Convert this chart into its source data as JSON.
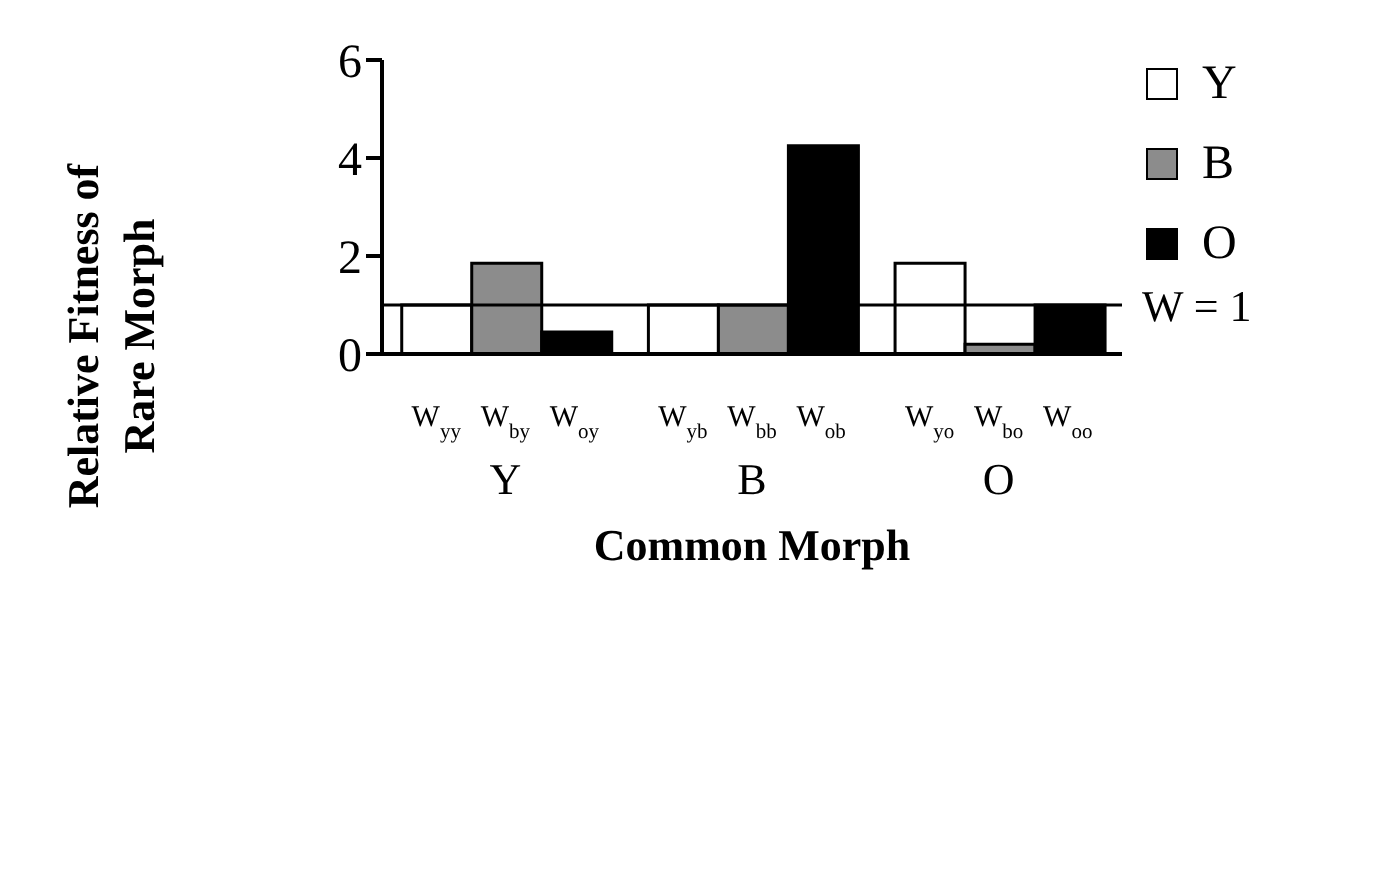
{
  "chart_data": {
    "type": "bar",
    "xlabel": "Common Morph",
    "ylabel": "Relative Fitness of Rare Morph",
    "categories": [
      "Y",
      "B",
      "O"
    ],
    "series": [
      {
        "name": "Y",
        "color": "#ffffff",
        "values": [
          1,
          1,
          1.85
        ]
      },
      {
        "name": "B",
        "color": "#8c8c8c",
        "values": [
          1.85,
          1,
          0.2
        ]
      },
      {
        "name": "O",
        "color": "#000000",
        "values": [
          0.45,
          4.25,
          1
        ]
      }
    ],
    "ylim": [
      0,
      6
    ],
    "yticks": [
      0,
      2,
      4,
      6
    ],
    "grid": false,
    "legend": "top right",
    "ref_lines": [
      {
        "axis": "y",
        "value": 1,
        "label": "W = 1",
        "color": "#000000"
      }
    ],
    "annotations": [
      "W$_{yy}$",
      "W$_{by}$",
      "W$_{oy}$",
      "W$_{yb}$",
      "W$_{bb}$",
      "W$_{ob}$",
      "W$_{yo}$",
      "W$_{bo}$",
      "W$_{oo}$"
    ]
  }
}
